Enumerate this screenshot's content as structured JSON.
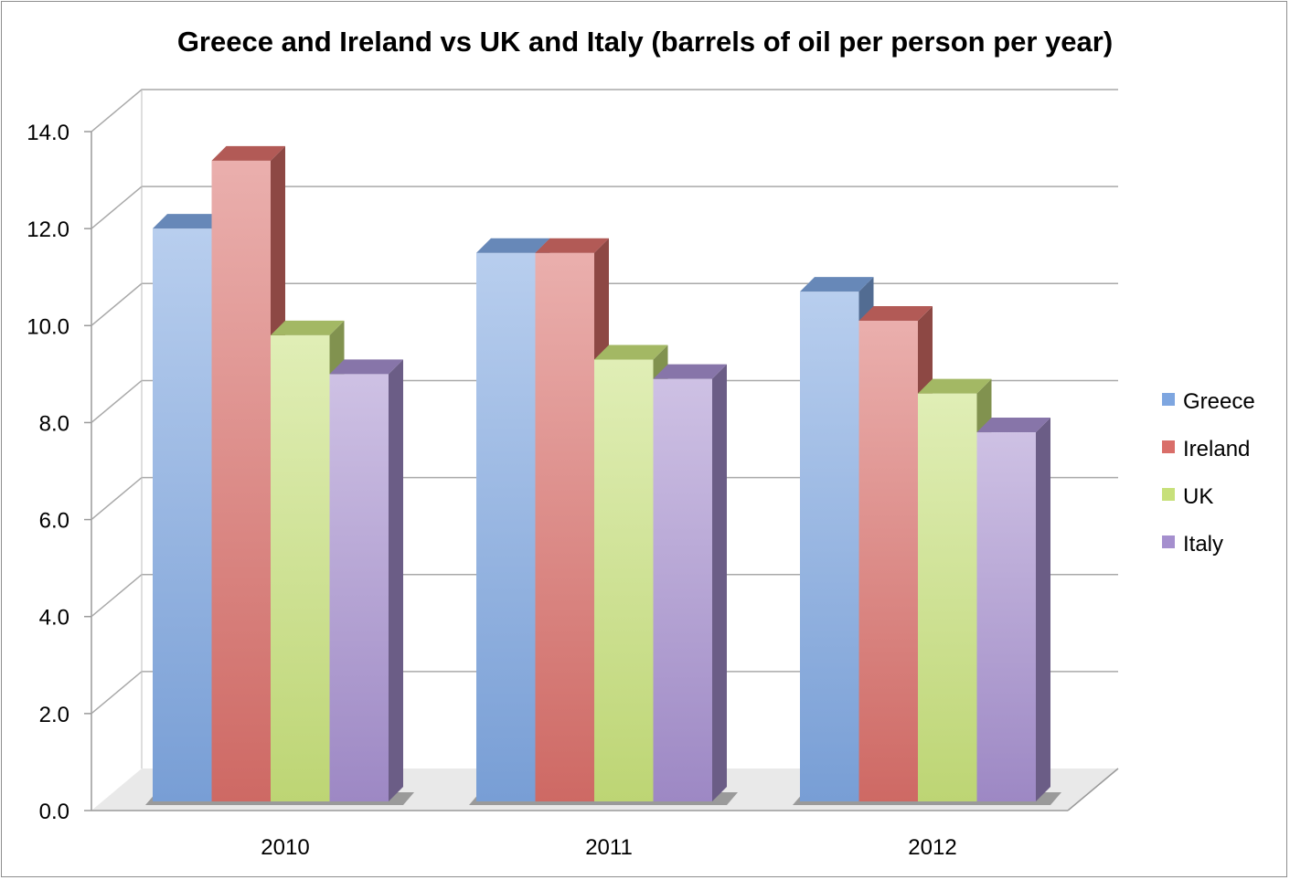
{
  "chart_data": {
    "type": "bar",
    "title": "Greece and Ireland vs UK and Italy (barrels of oil per person per year)",
    "xlabel": "",
    "ylabel": "",
    "categories": [
      "2010",
      "2011",
      "2012"
    ],
    "series": [
      {
        "name": "Greece",
        "values": [
          12.0,
          11.5,
          10.7
        ],
        "color": "#7ea6e0"
      },
      {
        "name": "Ireland",
        "values": [
          13.4,
          11.5,
          10.1
        ],
        "color": "#d96e69"
      },
      {
        "name": "UK",
        "values": [
          9.8,
          9.3,
          8.6
        ],
        "color": "#c7e07a"
      },
      {
        "name": "Italy",
        "values": [
          9.0,
          8.9,
          7.8
        ],
        "color": "#a58fce"
      }
    ],
    "ylim": [
      0,
      14
    ],
    "yticks": [
      "0.0",
      "2.0",
      "4.0",
      "6.0",
      "8.0",
      "10.0",
      "12.0",
      "14.0"
    ],
    "grid": true,
    "legend": "right",
    "style": "3d-clustered-column"
  }
}
